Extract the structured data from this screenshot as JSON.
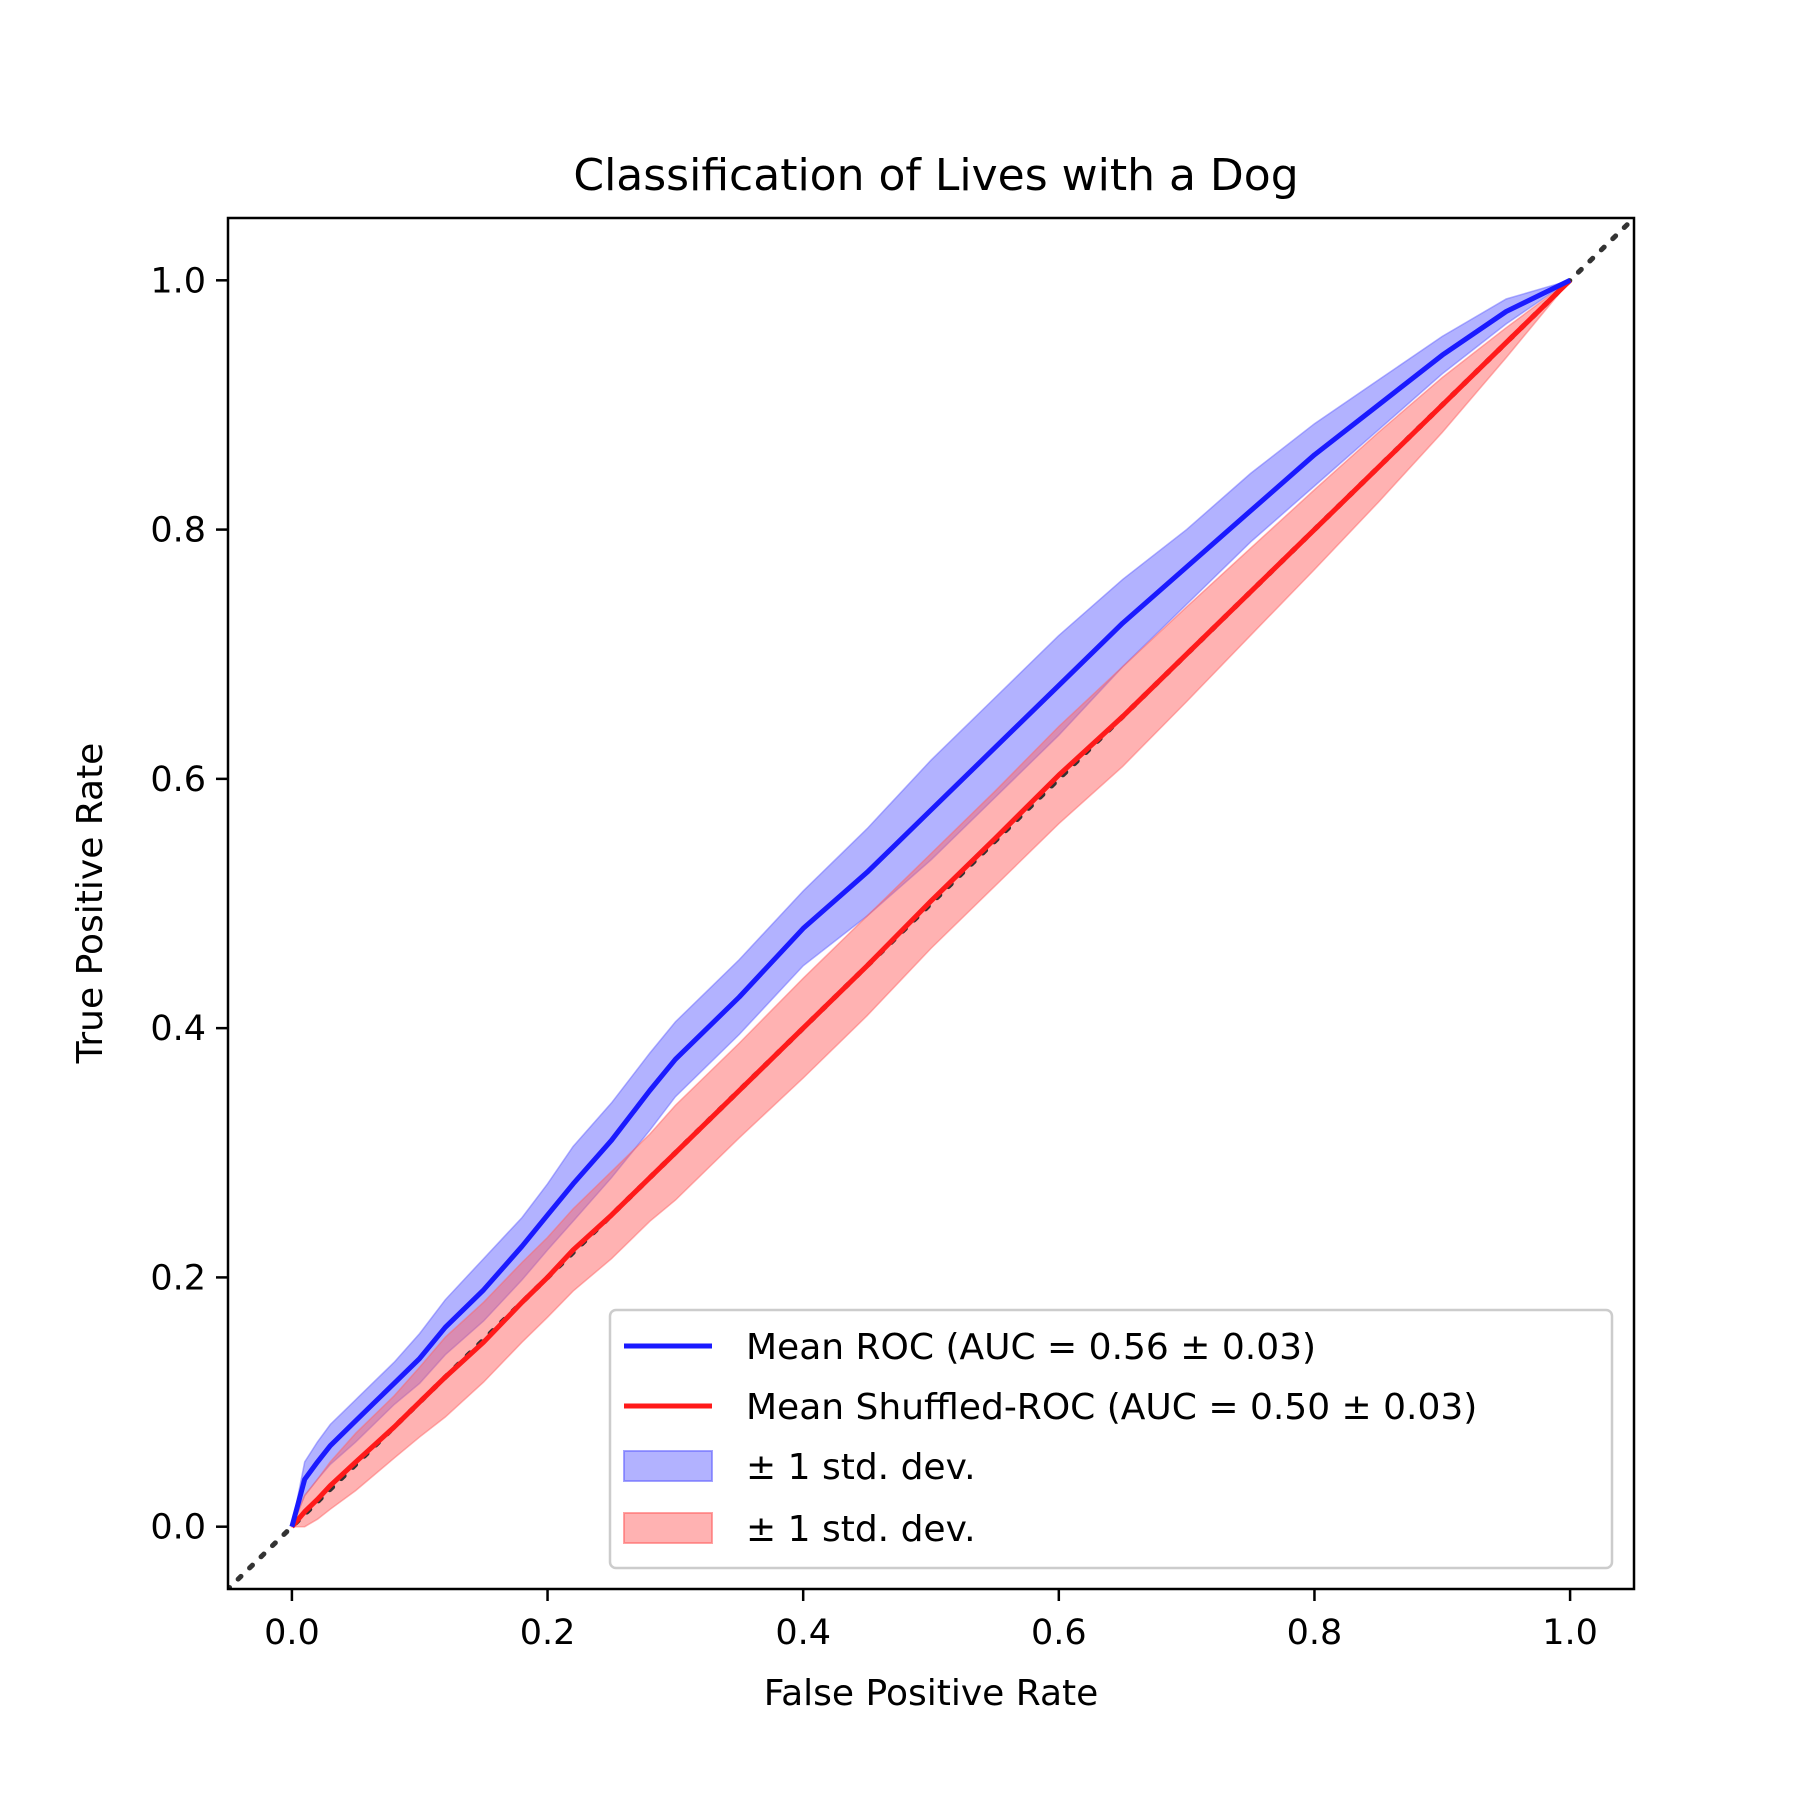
{
  "chart_data": {
    "type": "line",
    "title": "Classification of Lives with a Dog",
    "xlabel": "False Positive Rate",
    "ylabel": "True Positive Rate",
    "xlim": [
      -0.05,
      1.05
    ],
    "ylim": [
      -0.05,
      1.05
    ],
    "xticks": [
      "0.0",
      "0.2",
      "0.4",
      "0.6",
      "0.8",
      "1.0"
    ],
    "yticks": [
      "0.0",
      "0.2",
      "0.4",
      "0.6",
      "0.8",
      "1.0"
    ],
    "grid": false,
    "legend_position": "lower-right",
    "x": [
      0.0,
      0.01,
      0.02,
      0.03,
      0.05,
      0.08,
      0.1,
      0.12,
      0.15,
      0.18,
      0.2,
      0.22,
      0.25,
      0.28,
      0.3,
      0.35,
      0.4,
      0.45,
      0.5,
      0.55,
      0.6,
      0.65,
      0.7,
      0.75,
      0.8,
      0.85,
      0.9,
      0.95,
      1.0
    ],
    "series": [
      {
        "name": "Mean ROC (AUC = 0.56 ± 0.03)",
        "color": "#1a1aff",
        "type": "line",
        "y": [
          0.0,
          0.038,
          0.052,
          0.065,
          0.085,
          0.115,
          0.135,
          0.16,
          0.19,
          0.225,
          0.25,
          0.275,
          0.31,
          0.35,
          0.375,
          0.425,
          0.48,
          0.525,
          0.575,
          0.625,
          0.675,
          0.725,
          0.77,
          0.815,
          0.86,
          0.9,
          0.94,
          0.975,
          1.0
        ]
      },
      {
        "name": "Mean Shuffled-ROC (AUC = 0.50 ± 0.03)",
        "color": "#ff1a1a",
        "type": "line",
        "y": [
          0.0,
          0.012,
          0.022,
          0.033,
          0.052,
          0.08,
          0.1,
          0.12,
          0.148,
          0.18,
          0.2,
          0.222,
          0.25,
          0.28,
          0.3,
          0.35,
          0.4,
          0.45,
          0.502,
          0.552,
          0.603,
          0.65,
          0.7,
          0.75,
          0.8,
          0.85,
          0.9,
          0.95,
          1.0
        ]
      },
      {
        "name": "± 1 std. dev.",
        "color": "#6666ff",
        "type": "band",
        "upper": [
          0.0,
          0.052,
          0.068,
          0.082,
          0.102,
          0.132,
          0.155,
          0.182,
          0.215,
          0.248,
          0.275,
          0.305,
          0.34,
          0.38,
          0.405,
          0.455,
          0.51,
          0.56,
          0.615,
          0.665,
          0.715,
          0.76,
          0.8,
          0.845,
          0.885,
          0.92,
          0.955,
          0.985,
          1.0
        ],
        "lower": [
          0.0,
          0.025,
          0.038,
          0.05,
          0.068,
          0.098,
          0.115,
          0.138,
          0.165,
          0.198,
          0.222,
          0.245,
          0.28,
          0.318,
          0.345,
          0.395,
          0.45,
          0.49,
          0.535,
          0.585,
          0.635,
          0.69,
          0.74,
          0.79,
          0.835,
          0.88,
          0.925,
          0.965,
          1.0
        ]
      },
      {
        "name": "± 1 std. dev.",
        "color": "#ff6666",
        "type": "band",
        "upper": [
          0.0,
          0.025,
          0.038,
          0.052,
          0.075,
          0.105,
          0.128,
          0.152,
          0.18,
          0.212,
          0.232,
          0.255,
          0.285,
          0.315,
          0.338,
          0.388,
          0.44,
          0.49,
          0.54,
          0.59,
          0.642,
          0.69,
          0.738,
          0.785,
          0.832,
          0.878,
          0.922,
          0.962,
          1.0
        ]
      }
    ]
  }
}
